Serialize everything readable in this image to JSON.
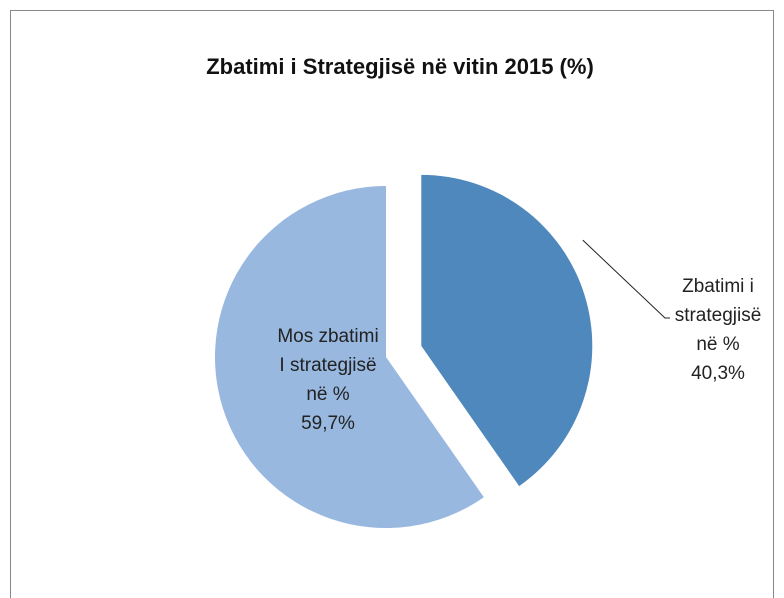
{
  "chart_data": {
    "type": "pie",
    "title": "Zbatimi i Strategjisë në vitin 2015 (%)",
    "categories": [
      "Zbatimi i\nstrategjisë\nnë %",
      "Mos zbatimi\nI strategjisë\nnë %"
    ],
    "values": [
      40.3,
      59.7
    ],
    "value_labels": [
      "40,3%",
      "59,7%"
    ],
    "colors": [
      "#4f88bd",
      "#98b8e0"
    ]
  }
}
